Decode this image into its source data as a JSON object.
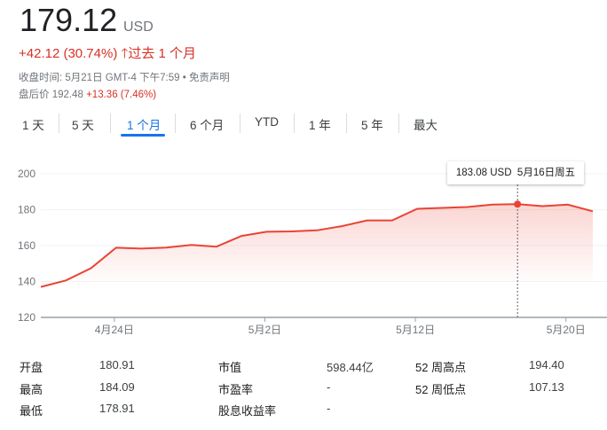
{
  "quote": {
    "price": "179.12",
    "currency": "USD",
    "change": "+42.12 (30.74%)",
    "arrow_icon": "arrow-up-icon",
    "period": "过去 1 个月",
    "close_label": "收盘时间: 5月21日 GMT-4 下午7:59",
    "separator": "•",
    "disclaimer": "免责声明",
    "after_hours_label": "盘后价",
    "after_hours_price": "192.48",
    "after_hours_change": "+13.36 (7.46%)"
  },
  "tabs": [
    {
      "label": "1 天"
    },
    {
      "label": "5 天"
    },
    {
      "label": "1 个月",
      "active": true
    },
    {
      "label": "6 个月"
    },
    {
      "label": "YTD"
    },
    {
      "label": "1 年"
    },
    {
      "label": "5 年"
    },
    {
      "label": "最大"
    }
  ],
  "colors": {
    "line": "#ea4335",
    "accent": "#1a73e8",
    "negative_positive": "#d93025"
  },
  "tooltip": {
    "price": "183.08 USD",
    "date": "5月16日周五"
  },
  "chart_data": {
    "type": "area",
    "dates": [
      "4月21日",
      "4月22日",
      "4月23日",
      "4月24日",
      "4月25日",
      "4月28日",
      "4月29日",
      "4月30日",
      "5月1日",
      "5月2日",
      "5月5日",
      "5月6日",
      "5月7日",
      "5月8日",
      "5月9日",
      "5月12日",
      "5月13日",
      "5月14日",
      "5月15日",
      "5月16日",
      "5月19日",
      "5月20日",
      "5月21日"
    ],
    "values": [
      137.0,
      140.6,
      147.4,
      158.8,
      158.3,
      158.9,
      160.4,
      159.4,
      165.4,
      167.7,
      167.9,
      168.5,
      170.8,
      174.0,
      174.0,
      180.5,
      181.0,
      181.5,
      182.8,
      183.08,
      182.0,
      182.8,
      179.12
    ],
    "ylim": [
      120,
      200
    ],
    "yticks": [
      "120",
      "140",
      "160",
      "180",
      "200"
    ],
    "xticks": [
      {
        "index": 3,
        "label": "4月24日"
      },
      {
        "index": 9,
        "label": "5月2日"
      },
      {
        "index": 15,
        "label": "5月12日"
      },
      {
        "index": 21,
        "label": "5月20日"
      }
    ],
    "highlight_index": 19,
    "grid": true
  },
  "stats": [
    [
      {
        "label": "开盘",
        "value": "180.91"
      },
      {
        "label": "市值",
        "value": "598.44亿"
      },
      {
        "label": "52 周高点",
        "value": "194.40"
      }
    ],
    [
      {
        "label": "最高",
        "value": "184.09"
      },
      {
        "label": "市盈率",
        "value": "-"
      },
      {
        "label": "52 周低点",
        "value": "107.13"
      }
    ],
    [
      {
        "label": "最低",
        "value": "178.91"
      },
      {
        "label": "股息收益率",
        "value": "-"
      }
    ]
  ]
}
